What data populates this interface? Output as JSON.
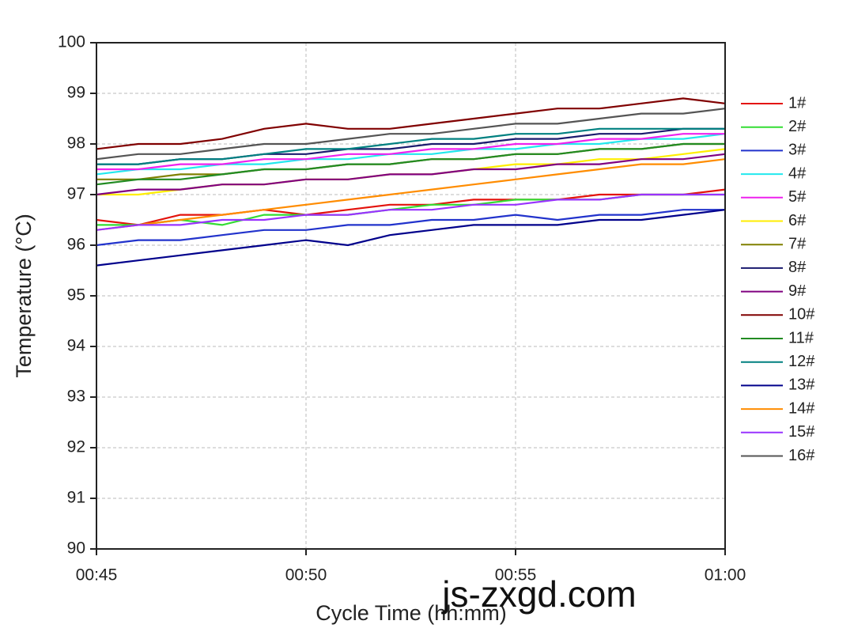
{
  "chart_data": {
    "type": "line",
    "x_label": "Cycle Time (hh:mm)",
    "y_label": "Temperature (°C)",
    "watermark": "js-zxgd.com",
    "x": [
      45,
      46,
      47,
      48,
      49,
      50,
      51,
      52,
      53,
      54,
      55,
      56,
      57,
      58,
      59,
      60
    ],
    "xlim": [
      45,
      60
    ],
    "xticks": [
      {
        "value": 45,
        "label": "00:45"
      },
      {
        "value": 50,
        "label": "00:50"
      },
      {
        "value": 55,
        "label": "00:55"
      },
      {
        "value": 60,
        "label": "01:00"
      }
    ],
    "ylim": [
      90,
      100
    ],
    "yticks": [
      90,
      91,
      92,
      93,
      94,
      95,
      96,
      97,
      98,
      99,
      100
    ],
    "grid": true,
    "legend": "right",
    "series": [
      {
        "name": "1#",
        "color": "#e3120b",
        "values": [
          96.5,
          96.4,
          96.6,
          96.6,
          96.7,
          96.6,
          96.7,
          96.8,
          96.8,
          96.9,
          96.9,
          96.9,
          97.0,
          97.0,
          97.0,
          97.1
        ]
      },
      {
        "name": "2#",
        "color": "#33dd33",
        "values": [
          96.4,
          96.4,
          96.5,
          96.4,
          96.6,
          96.6,
          96.6,
          96.7,
          96.8,
          96.8,
          96.9,
          96.9,
          96.9,
          97.0,
          97.0,
          97.0
        ]
      },
      {
        "name": "3#",
        "color": "#2233cc",
        "values": [
          96.0,
          96.1,
          96.1,
          96.2,
          96.3,
          96.3,
          96.4,
          96.4,
          96.5,
          96.5,
          96.6,
          96.5,
          96.6,
          96.6,
          96.7,
          96.7
        ]
      },
      {
        "name": "4#",
        "color": "#22e8ee",
        "values": [
          97.4,
          97.5,
          97.5,
          97.6,
          97.6,
          97.7,
          97.7,
          97.8,
          97.8,
          97.9,
          97.9,
          98.0,
          98.0,
          98.1,
          98.1,
          98.2
        ]
      },
      {
        "name": "5#",
        "color": "#ee22ee",
        "values": [
          97.5,
          97.5,
          97.6,
          97.6,
          97.7,
          97.7,
          97.8,
          97.8,
          97.9,
          97.9,
          98.0,
          98.0,
          98.1,
          98.1,
          98.2,
          98.2
        ]
      },
      {
        "name": "6#",
        "color": "#ffee00",
        "values": [
          97.0,
          97.0,
          97.1,
          97.2,
          97.2,
          97.3,
          97.3,
          97.4,
          97.4,
          97.5,
          97.6,
          97.6,
          97.7,
          97.7,
          97.8,
          97.9
        ]
      },
      {
        "name": "7#",
        "color": "#808000",
        "values": [
          97.3,
          97.3,
          97.4,
          97.4,
          97.5,
          97.5,
          97.6,
          97.6,
          97.7,
          97.7,
          97.8,
          97.8,
          97.9,
          97.9,
          98.0,
          98.0
        ]
      },
      {
        "name": "8#",
        "color": "#1a1a6e",
        "values": [
          97.6,
          97.6,
          97.7,
          97.7,
          97.8,
          97.8,
          97.9,
          97.9,
          98.0,
          98.0,
          98.1,
          98.1,
          98.2,
          98.2,
          98.3,
          98.3
        ]
      },
      {
        "name": "9#",
        "color": "#800080",
        "values": [
          97.0,
          97.1,
          97.1,
          97.2,
          97.2,
          97.3,
          97.3,
          97.4,
          97.4,
          97.5,
          97.5,
          97.6,
          97.6,
          97.7,
          97.7,
          97.8
        ]
      },
      {
        "name": "10#",
        "color": "#800000",
        "values": [
          97.9,
          98.0,
          98.0,
          98.1,
          98.3,
          98.4,
          98.3,
          98.3,
          98.4,
          98.5,
          98.6,
          98.7,
          98.7,
          98.8,
          98.9,
          98.8
        ]
      },
      {
        "name": "11#",
        "color": "#228b22",
        "values": [
          97.2,
          97.3,
          97.3,
          97.4,
          97.5,
          97.5,
          97.6,
          97.6,
          97.7,
          97.7,
          97.8,
          97.8,
          97.9,
          97.9,
          98.0,
          98.0
        ]
      },
      {
        "name": "12#",
        "color": "#008080",
        "values": [
          97.6,
          97.6,
          97.7,
          97.7,
          97.8,
          97.9,
          97.9,
          98.0,
          98.1,
          98.1,
          98.2,
          98.2,
          98.3,
          98.3,
          98.3,
          98.3
        ]
      },
      {
        "name": "13#",
        "color": "#00008b",
        "values": [
          95.6,
          95.7,
          95.8,
          95.9,
          96.0,
          96.1,
          96.0,
          96.2,
          96.3,
          96.4,
          96.4,
          96.4,
          96.5,
          96.5,
          96.6,
          96.7
        ]
      },
      {
        "name": "14#",
        "color": "#ff8c00",
        "values": [
          96.3,
          96.4,
          96.5,
          96.6,
          96.7,
          96.8,
          96.9,
          97.0,
          97.1,
          97.2,
          97.3,
          97.4,
          97.5,
          97.6,
          97.6,
          97.7
        ]
      },
      {
        "name": "15#",
        "color": "#9933ff",
        "values": [
          96.3,
          96.4,
          96.4,
          96.5,
          96.5,
          96.6,
          96.6,
          96.7,
          96.7,
          96.8,
          96.8,
          96.9,
          96.9,
          97.0,
          97.0,
          97.0
        ]
      },
      {
        "name": "16#",
        "color": "#555555",
        "values": [
          97.7,
          97.8,
          97.8,
          97.9,
          98.0,
          98.0,
          98.1,
          98.2,
          98.2,
          98.3,
          98.4,
          98.4,
          98.5,
          98.6,
          98.6,
          98.7
        ]
      }
    ]
  }
}
